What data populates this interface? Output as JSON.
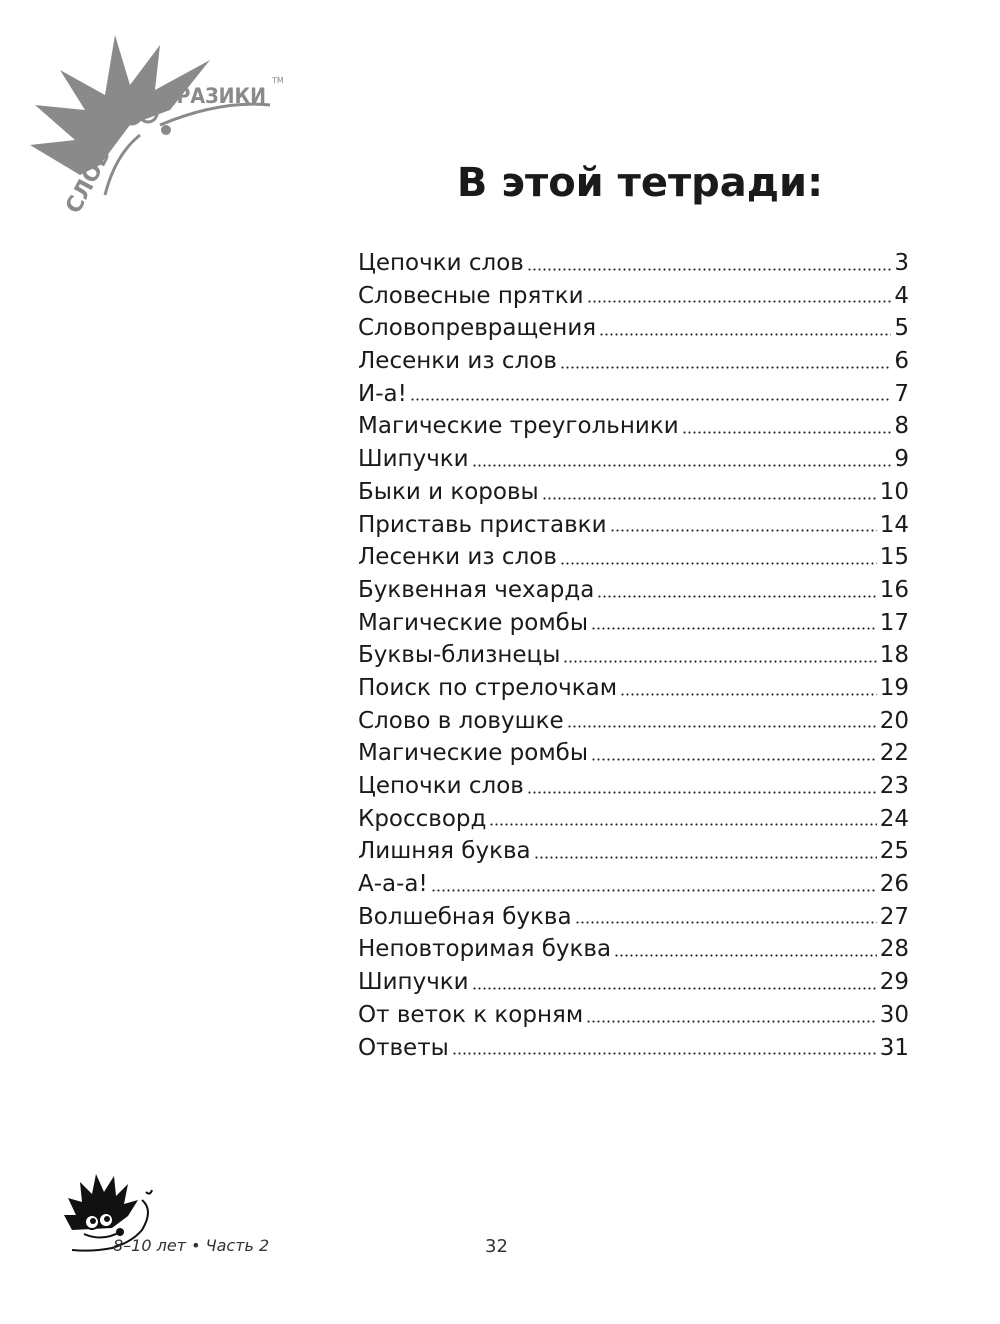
{
  "logo": {
    "text_left": "СЛОВ",
    "text_right": "БРАЗИКИ",
    "tm": "TM"
  },
  "title": "В этой тетради:",
  "toc": [
    {
      "name": "Цепочки слов",
      "page": "3"
    },
    {
      "name": "Словесные прятки",
      "page": "4"
    },
    {
      "name": "Словопревращения",
      "page": "5"
    },
    {
      "name": "Лесенки из слов",
      "page": "6"
    },
    {
      "name": "И-а!",
      "page": "7"
    },
    {
      "name": "Магические треугольники",
      "page": "8"
    },
    {
      "name": "Шипучки",
      "page": "9"
    },
    {
      "name": "Быки и коровы",
      "page": "10"
    },
    {
      "name": "Приставь приставки",
      "page": "14"
    },
    {
      "name": "Лесенки из слов",
      "page": "15"
    },
    {
      "name": "Буквенная чехарда",
      "page": "16"
    },
    {
      "name": "Магические ромбы",
      "page": "17"
    },
    {
      "name": "Буквы-близнецы",
      "page": "18"
    },
    {
      "name": "Поиск по стрелочкам",
      "page": "19"
    },
    {
      "name": "Слово в ловушке",
      "page": "20"
    },
    {
      "name": "Магические ромбы",
      "page": "22"
    },
    {
      "name": "Цепочки слов",
      "page": "23"
    },
    {
      "name": "Кроссворд",
      "page": "24"
    },
    {
      "name": "Лишняя буква",
      "page": "25"
    },
    {
      "name": "А-а-а!",
      "page": "26"
    },
    {
      "name": "Волшебная буква",
      "page": "27"
    },
    {
      "name": "Неповторимая буква",
      "page": "28"
    },
    {
      "name": "Шипучки",
      "page": "29"
    },
    {
      "name": "От веток к корням",
      "page": "30"
    },
    {
      "name": "Ответы",
      "page": "31"
    }
  ],
  "footer": {
    "text": "8–10 лет • Часть 2",
    "page_number": "32"
  }
}
